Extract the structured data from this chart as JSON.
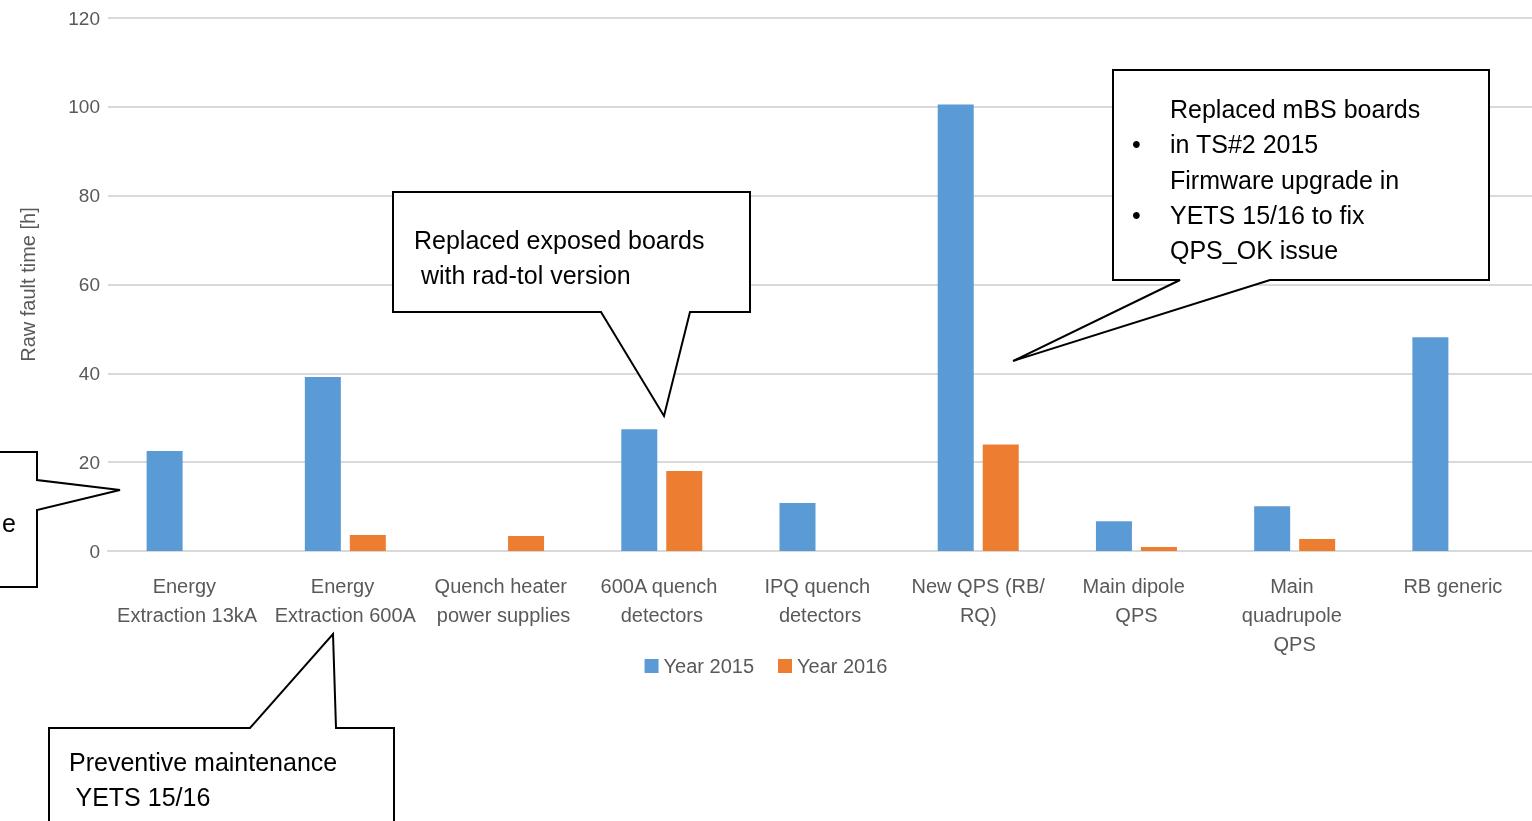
{
  "chart_data": {
    "type": "bar",
    "ylabel": "Raw fault time [h]",
    "categories": [
      "Energy Extraction 13kA",
      "Energy Extraction 600A",
      "Quench heater power supplies",
      "600A quench detectors",
      "IPQ quench detectors",
      "New QPS (RB/RQ)",
      "Main dipole QPS",
      "Main quadrupole QPS",
      "RB generic"
    ],
    "series": [
      {
        "name": "Year 2015",
        "color": "#5b9bd5",
        "values": [
          22.5,
          39.2,
          null,
          27.4,
          10.8,
          100.5,
          6.7,
          10.1,
          48.1
        ]
      },
      {
        "name": "Year 2016",
        "color": "#ed7d31",
        "values": [
          null,
          3.6,
          3.4,
          18.0,
          null,
          24.0,
          0.9,
          2.7,
          null
        ]
      }
    ],
    "ylim": [
      0,
      120
    ],
    "yticks": [
      0,
      20,
      40,
      60,
      80,
      100,
      120
    ],
    "grid": "y",
    "legend": "bottom",
    "annotations": [
      "Replaced exposed boards with rad-tol version",
      "Replaced mBS boards in TS#2 2015",
      "Firmware upgrade in YETS 15/16 to fix QPS_OK issue",
      "Preventive maintenance YETS 15/16",
      "e",
      "•",
      "•"
    ]
  }
}
